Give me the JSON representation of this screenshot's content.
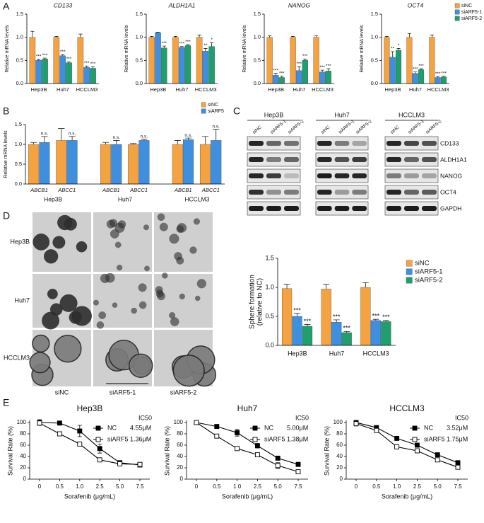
{
  "panel_labels": [
    "A",
    "B",
    "C",
    "D",
    "E"
  ],
  "western_blot": {
    "cell_lines": [
      "Hep3B",
      "Huh7",
      "HCCLM3"
    ],
    "lanes": [
      "siNC",
      "siARF5-1",
      "siARF5-2"
    ],
    "proteins": [
      "CD133",
      "ALDH1A1",
      "NANOG",
      "OCT4",
      "GAPDH"
    ]
  },
  "sphere_images": {
    "rows": [
      "Hep3B",
      "Huh7",
      "HCCLM3"
    ],
    "columns": [
      "siNC",
      "siARF5-1",
      "siARF5-2"
    ]
  },
  "chart_data": [
    {
      "type": "bar",
      "title": "CD133",
      "title_italic": true,
      "ylabel": "Relative mRNA levels",
      "categories": [
        "Hep3B",
        "Huh7",
        "HCCLM3"
      ],
      "ylim": [
        0,
        1.5
      ],
      "yticks": [
        {
          "value": 0,
          "label": "0.0"
        },
        0.5,
        {
          "value": 1,
          "label": "1.0"
        },
        1.5
      ],
      "series": [
        {
          "name": "siNC",
          "color": "#f4a340",
          "values": [
            1.0,
            1.0,
            1.0
          ],
          "errors": [
            0.13,
            0.02,
            0.07
          ],
          "significance": [
            null,
            null,
            null
          ]
        },
        {
          "name": "siARF5-1",
          "color": "#3f8fe0",
          "values": [
            0.5,
            0.6,
            0.35
          ],
          "errors": [
            0.02,
            0.02,
            0.03
          ],
          "significance": [
            "***",
            "***",
            "***"
          ]
        },
        {
          "name": "siARF5-2",
          "color": "#1f9e6e",
          "values": [
            0.53,
            0.45,
            0.33
          ],
          "errors": [
            0.02,
            0.02,
            0.03
          ],
          "significance": [
            "***",
            "***",
            "***"
          ]
        }
      ]
    },
    {
      "type": "bar",
      "title": "ALDH1A1",
      "title_italic": true,
      "ylabel": "Relative mRNA levels",
      "categories": [
        "Hep3B",
        "Huh7",
        "HCCLM3"
      ],
      "ylim": [
        0,
        1.5
      ],
      "yticks": [
        {
          "value": 0,
          "label": "0.0"
        },
        0.5,
        {
          "value": 1,
          "label": "1.0"
        },
        1.5
      ],
      "series": [
        {
          "name": "siNC",
          "color": "#f4a340",
          "values": [
            1.0,
            1.0,
            1.0
          ],
          "errors": [
            0.02,
            0.02,
            0.05
          ],
          "significance": [
            null,
            null,
            null
          ]
        },
        {
          "name": "siARF5-1",
          "color": "#3f8fe0",
          "values": [
            1.1,
            0.78,
            0.7
          ],
          "errors": [
            0.01,
            0.02,
            0.06
          ],
          "significance": [
            null,
            "***",
            "**"
          ]
        },
        {
          "name": "siARF5-2",
          "color": "#1f9e6e",
          "values": [
            0.77,
            0.82,
            0.8
          ],
          "errors": [
            0.04,
            0.02,
            0.08
          ],
          "significance": [
            "***",
            "***",
            "*"
          ]
        }
      ]
    },
    {
      "type": "bar",
      "title": "NANOG",
      "title_italic": true,
      "ylabel": "Relative mRNA levels",
      "categories": [
        "Hep3B",
        "Huh7",
        "HCCLM3"
      ],
      "ylim": [
        0,
        1.5
      ],
      "yticks": [
        {
          "value": 0,
          "label": "0.0"
        },
        0.5,
        {
          "value": 1,
          "label": "1.0"
        },
        1.5
      ],
      "series": [
        {
          "name": "siNC",
          "color": "#f4a340",
          "values": [
            1.0,
            1.0,
            1.0
          ],
          "errors": [
            0.03,
            0.02,
            0.03
          ],
          "significance": [
            null,
            null,
            null
          ]
        },
        {
          "name": "siARF5-1",
          "color": "#3f8fe0",
          "values": [
            0.18,
            0.28,
            0.25
          ],
          "errors": [
            0.04,
            0.08,
            0.04
          ],
          "significance": [
            "***",
            "***",
            "***"
          ]
        },
        {
          "name": "siARF5-2",
          "color": "#1f9e6e",
          "values": [
            0.13,
            0.5,
            0.27
          ],
          "errors": [
            0.03,
            0.03,
            0.05
          ],
          "significance": [
            "***",
            "***",
            "***"
          ]
        }
      ]
    },
    {
      "type": "bar",
      "title": "OCT4",
      "title_italic": true,
      "ylabel": "Relative mRNA levels",
      "categories": [
        "Hep3B",
        "Huh7",
        "HCCLM3"
      ],
      "legend": "upper right",
      "ylim": [
        0,
        1.5
      ],
      "yticks": [
        {
          "value": 0,
          "label": "0.0"
        },
        0.5,
        {
          "value": 1,
          "label": "1.0"
        },
        1.5
      ],
      "series": [
        {
          "name": "siNC",
          "color": "#f4a340",
          "values": [
            1.0,
            1.0,
            1.0
          ],
          "errors": [
            0.02,
            0.08,
            0.05
          ],
          "significance": [
            null,
            null,
            null
          ]
        },
        {
          "name": "siARF5-1",
          "color": "#3f8fe0",
          "values": [
            0.57,
            0.22,
            0.13
          ],
          "errors": [
            0.12,
            0.03,
            0.02
          ],
          "significance": [
            "**",
            "***",
            "***"
          ]
        },
        {
          "name": "siARF5-2",
          "color": "#1f9e6e",
          "values": [
            0.72,
            0.3,
            0.14
          ],
          "errors": [
            0.04,
            0.02,
            0.02
          ],
          "significance": [
            "*",
            "***",
            "***"
          ]
        }
      ]
    },
    {
      "type": "bar",
      "ylabel": "Relative mRNA levels",
      "italic_categories": true,
      "legend": "upper right",
      "categories": [
        "ABCB1",
        "ABCC1",
        "ABCB1",
        "ABCC1",
        "ABCB1",
        "ABCC1"
      ],
      "groups": [
        "Hep3B",
        "Huh7",
        "HCCLM3"
      ],
      "ylim": [
        0,
        1.5
      ],
      "yticks": [
        {
          "value": 0,
          "label": "0.0"
        },
        0.5,
        {
          "value": 1,
          "label": "1.0"
        },
        1.5
      ],
      "series": [
        {
          "name": "siNC",
          "color": "#f4a340",
          "values": [
            1.0,
            1.1,
            1.0,
            1.0,
            1.0,
            1.0
          ],
          "errors": [
            0.05,
            0.3,
            0.05,
            0.02,
            0.1,
            0.2
          ],
          "significance": [
            null,
            null,
            null,
            null,
            null,
            null
          ]
        },
        {
          "name": "siARF5",
          "color": "#3f8fe0",
          "values": [
            1.05,
            1.1,
            1.0,
            1.1,
            1.12,
            1.1
          ],
          "errors": [
            0.15,
            0.1,
            0.1,
            0.03,
            0.04,
            0.28
          ],
          "significance": [
            "n.s.",
            "n.s.",
            "n.s.",
            "n.s.",
            "n.s.",
            "n.s."
          ]
        }
      ]
    },
    {
      "type": "bar",
      "ylabel": [
        "Sphere formation",
        "(relative to NC)"
      ],
      "categories": [
        "Hep3B",
        "Huh7",
        "HCCLM3"
      ],
      "legend": "upper right",
      "large": true,
      "ylim": [
        0,
        1.5
      ],
      "yticks": [
        {
          "value": 0,
          "label": "0.0"
        },
        0.5,
        {
          "value": 1,
          "label": "1.0"
        },
        1.5
      ],
      "series": [
        {
          "name": "siNC",
          "color": "#f4a340",
          "values": [
            0.98,
            0.97,
            1.0
          ],
          "errors": [
            0.07,
            0.08,
            0.08
          ],
          "significance": [
            null,
            null,
            null
          ]
        },
        {
          "name": "siARF5-1",
          "color": "#3f8fe0",
          "values": [
            0.5,
            0.4,
            0.43
          ],
          "errors": [
            0.05,
            0.04,
            0.02
          ],
          "significance": [
            "***",
            "***",
            "***"
          ]
        },
        {
          "name": "siARF5-2",
          "color": "#1f9e6e",
          "values": [
            0.33,
            0.22,
            0.41
          ],
          "errors": [
            0.03,
            0.02,
            0.02
          ],
          "significance": [
            "***",
            "***",
            "***"
          ]
        }
      ]
    },
    {
      "type": "line",
      "title": "Hep3B",
      "xlabel": "Sorafenib (μg/mL)",
      "ylabel": "Survival Rate (%)",
      "categories": [
        "0",
        "0.5",
        "1.0",
        "2.5",
        "5.0",
        "7.5"
      ],
      "ylim": [
        0,
        100
      ],
      "yticks": [
        0,
        20,
        40,
        60,
        80,
        100
      ],
      "legend": "upper right",
      "ic50_title": "IC50",
      "series": [
        {
          "name": "NC",
          "color": "#000000",
          "marker_fill": "#000000",
          "values": [
            100,
            99,
            85,
            54,
            29,
            25
          ],
          "errors": [
            5,
            1,
            10,
            8,
            1,
            2
          ],
          "ic50": "4.55μM"
        },
        {
          "name": "siARF5",
          "color": "#000000",
          "marker_fill": "#ffffff",
          "values": [
            99,
            80,
            62,
            34,
            27,
            26
          ],
          "errors": [
            4,
            3,
            3,
            2,
            2,
            2
          ],
          "ic50": "1.36μM"
        }
      ]
    },
    {
      "type": "line",
      "title": "Huh7",
      "xlabel": "Sorafenib (μg/mL)",
      "ylabel": "Survival Rate (%)",
      "categories": [
        "0",
        "0.5",
        "1.0",
        "2.5",
        "5.0",
        "7.5"
      ],
      "ylim": [
        0,
        100
      ],
      "yticks": [
        0,
        20,
        40,
        60,
        80,
        100
      ],
      "legend": "upper right",
      "ic50_title": "IC50",
      "series": [
        {
          "name": "NC",
          "color": "#000000",
          "marker_fill": "#000000",
          "values": [
            100,
            93,
            82,
            59,
            37,
            26
          ],
          "errors": [
            1,
            1,
            6,
            4,
            1,
            1
          ],
          "ic50": "5.00μM"
        },
        {
          "name": "siARF5",
          "color": "#000000",
          "marker_fill": "#ffffff",
          "values": [
            100,
            76,
            54,
            43,
            24,
            13
          ],
          "errors": [
            1,
            2,
            1,
            2,
            5,
            2
          ],
          "ic50": "1.38μM"
        }
      ]
    },
    {
      "type": "line",
      "title": "HCCLM3",
      "xlabel": "Sorafenib (μg/mL)",
      "ylabel": "Survival Rate (%)",
      "categories": [
        "0",
        "0.5",
        "1.0",
        "2.5",
        "5.0",
        "7.5"
      ],
      "ylim": [
        0,
        100
      ],
      "yticks": [
        0,
        20,
        40,
        60,
        80,
        100
      ],
      "legend": "upper right",
      "ic50_title": "IC50",
      "series": [
        {
          "name": "NC",
          "color": "#000000",
          "marker_fill": "#000000",
          "values": [
            100,
            91,
            72,
            60,
            43,
            29
          ],
          "errors": [
            2,
            1,
            1,
            1,
            1,
            1
          ],
          "ic50": "3.52μM"
        },
        {
          "name": "siARF5",
          "color": "#000000",
          "marker_fill": "#ffffff",
          "values": [
            98,
            86,
            57,
            50,
            34,
            21
          ],
          "errors": [
            4,
            1,
            1,
            1,
            1,
            2
          ],
          "ic50": "1.75μM"
        }
      ]
    }
  ]
}
